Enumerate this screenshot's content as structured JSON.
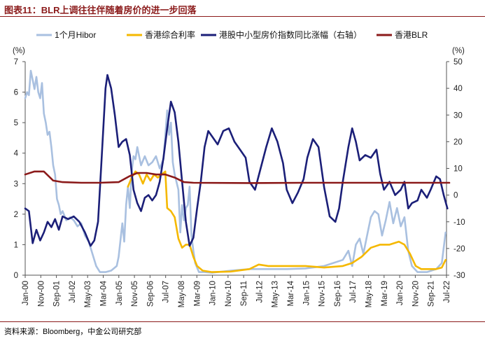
{
  "header": {
    "title": "图表11：BLR上调往往伴随着房价的进一步回落"
  },
  "footer": {
    "source": "资料来源：Bloomberg，中金公司研究部"
  },
  "chart_data": {
    "type": "line",
    "title": "图表11：BLR上调往往伴随着房价的进一步回落",
    "left_axis": {
      "unit": "(%)",
      "range": [
        0,
        7
      ],
      "ticks": [
        0,
        1,
        2,
        3,
        4,
        5,
        6,
        7
      ]
    },
    "right_axis": {
      "unit": "(%)",
      "range": [
        -30,
        50
      ],
      "ticks": [
        -30,
        -20,
        -10,
        0,
        10,
        20,
        30,
        40,
        50
      ]
    },
    "x_tick_labels": [
      "Jan-00",
      "Nov-00",
      "Sep-01",
      "Jul-02",
      "May-03",
      "Mar-04",
      "Jan-05",
      "Nov-05",
      "Sep-06",
      "Jul-07",
      "May-08",
      "Mar-09",
      "Jan-10",
      "Nov-10",
      "Sep-11",
      "Jul-12",
      "May-13",
      "Mar-14",
      "Jan-15",
      "Nov-15",
      "Sep-16",
      "Jul-17",
      "May-18",
      "Mar-19",
      "Jan-20",
      "Nov-20",
      "Sep-21",
      "Jul-22"
    ],
    "legend_position": "top",
    "series": [
      {
        "name": "1个月Hibor",
        "axis": "left",
        "color": "#a9c0e0",
        "points": [
          [
            2000.0,
            5.8
          ],
          [
            2000.1,
            6.0
          ],
          [
            2000.2,
            5.9
          ],
          [
            2000.3,
            6.7
          ],
          [
            2000.4,
            6.4
          ],
          [
            2000.5,
            6.1
          ],
          [
            2000.6,
            6.5
          ],
          [
            2000.7,
            6.0
          ],
          [
            2000.8,
            5.8
          ],
          [
            2000.9,
            6.3
          ],
          [
            2001.0,
            5.3
          ],
          [
            2001.1,
            5.0
          ],
          [
            2001.2,
            4.6
          ],
          [
            2001.3,
            4.7
          ],
          [
            2001.4,
            4.2
          ],
          [
            2001.5,
            3.6
          ],
          [
            2001.6,
            3.3
          ],
          [
            2001.7,
            2.5
          ],
          [
            2001.8,
            2.3
          ],
          [
            2001.9,
            2.0
          ],
          [
            2002.0,
            2.1
          ],
          [
            2002.2,
            1.8
          ],
          [
            2002.4,
            1.9
          ],
          [
            2002.6,
            1.8
          ],
          [
            2002.8,
            1.6
          ],
          [
            2003.0,
            1.7
          ],
          [
            2003.2,
            1.3
          ],
          [
            2003.4,
            1.1
          ],
          [
            2003.6,
            0.7
          ],
          [
            2003.8,
            0.3
          ],
          [
            2004.0,
            0.1
          ],
          [
            2004.3,
            0.1
          ],
          [
            2004.6,
            0.15
          ],
          [
            2004.9,
            0.3
          ],
          [
            2005.0,
            0.6
          ],
          [
            2005.2,
            1.7
          ],
          [
            2005.3,
            1.1
          ],
          [
            2005.4,
            2.3
          ],
          [
            2005.5,
            2.9
          ],
          [
            2005.6,
            2.2
          ],
          [
            2005.7,
            3.4
          ],
          [
            2005.8,
            3.9
          ],
          [
            2005.9,
            3.8
          ],
          [
            2006.0,
            4.2
          ],
          [
            2006.2,
            3.6
          ],
          [
            2006.4,
            3.9
          ],
          [
            2006.6,
            3.6
          ],
          [
            2006.8,
            3.7
          ],
          [
            2007.0,
            3.9
          ],
          [
            2007.2,
            3.5
          ],
          [
            2007.4,
            3.8
          ],
          [
            2007.6,
            5.4
          ],
          [
            2007.7,
            4.6
          ],
          [
            2007.8,
            5.0
          ],
          [
            2007.9,
            3.7
          ],
          [
            2008.0,
            3.3
          ],
          [
            2008.2,
            2.8
          ],
          [
            2008.3,
            1.4
          ],
          [
            2008.4,
            2.3
          ],
          [
            2008.5,
            1.8
          ],
          [
            2008.6,
            2.2
          ],
          [
            2008.7,
            2.3
          ],
          [
            2008.8,
            2.9
          ],
          [
            2008.9,
            1.3
          ],
          [
            2009.0,
            0.8
          ],
          [
            2009.1,
            0.4
          ],
          [
            2009.3,
            0.1
          ],
          [
            2009.6,
            0.1
          ],
          [
            2010.0,
            0.08
          ],
          [
            2011.0,
            0.15
          ],
          [
            2012.0,
            0.2
          ],
          [
            2013.0,
            0.2
          ],
          [
            2014.0,
            0.2
          ],
          [
            2015.0,
            0.22
          ],
          [
            2016.0,
            0.3
          ],
          [
            2017.0,
            0.5
          ],
          [
            2017.3,
            0.8
          ],
          [
            2017.5,
            0.3
          ],
          [
            2017.7,
            1.0
          ],
          [
            2017.9,
            1.2
          ],
          [
            2018.1,
            0.7
          ],
          [
            2018.3,
            1.3
          ],
          [
            2018.5,
            1.9
          ],
          [
            2018.7,
            2.1
          ],
          [
            2018.9,
            2.0
          ],
          [
            2019.1,
            1.3
          ],
          [
            2019.3,
            1.8
          ],
          [
            2019.5,
            2.4
          ],
          [
            2019.7,
            1.7
          ],
          [
            2019.9,
            2.2
          ],
          [
            2020.1,
            1.6
          ],
          [
            2020.3,
            1.9
          ],
          [
            2020.5,
            0.8
          ],
          [
            2020.7,
            0.3
          ],
          [
            2021.0,
            0.1
          ],
          [
            2021.5,
            0.1
          ],
          [
            2022.0,
            0.2
          ],
          [
            2022.3,
            0.4
          ],
          [
            2022.5,
            1.4
          ]
        ]
      },
      {
        "name": "香港综合利率",
        "axis": "left",
        "color": "#f5b800",
        "points": [
          [
            2005.5,
            2.9
          ],
          [
            2005.7,
            3.2
          ],
          [
            2005.9,
            3.4
          ],
          [
            2006.1,
            3.3
          ],
          [
            2006.3,
            3.0
          ],
          [
            2006.5,
            3.3
          ],
          [
            2006.7,
            3.1
          ],
          [
            2006.9,
            3.3
          ],
          [
            2007.1,
            3.2
          ],
          [
            2007.3,
            3.3
          ],
          [
            2007.5,
            3.4
          ],
          [
            2007.6,
            2.2
          ],
          [
            2007.8,
            2.1
          ],
          [
            2008.0,
            1.9
          ],
          [
            2008.2,
            1.2
          ],
          [
            2008.4,
            0.9
          ],
          [
            2008.6,
            1.0
          ],
          [
            2008.8,
            1.0
          ],
          [
            2009.0,
            0.6
          ],
          [
            2009.2,
            0.3
          ],
          [
            2009.5,
            0.15
          ],
          [
            2010.0,
            0.1
          ],
          [
            2011.0,
            0.12
          ],
          [
            2012.0,
            0.2
          ],
          [
            2012.5,
            0.35
          ],
          [
            2013.0,
            0.3
          ],
          [
            2014.0,
            0.3
          ],
          [
            2015.0,
            0.3
          ],
          [
            2016.0,
            0.25
          ],
          [
            2017.0,
            0.3
          ],
          [
            2017.5,
            0.4
          ],
          [
            2018.0,
            0.6
          ],
          [
            2018.5,
            0.9
          ],
          [
            2019.0,
            1.0
          ],
          [
            2019.5,
            1.0
          ],
          [
            2020.0,
            1.1
          ],
          [
            2020.3,
            1.0
          ],
          [
            2020.6,
            0.7
          ],
          [
            2020.9,
            0.3
          ],
          [
            2021.2,
            0.2
          ],
          [
            2021.6,
            0.2
          ],
          [
            2022.0,
            0.2
          ],
          [
            2022.3,
            0.25
          ],
          [
            2022.5,
            0.5
          ]
        ]
      },
      {
        "name": "港股中小型房价指数同比涨幅（右轴）",
        "axis": "right",
        "color": "#1b1f78",
        "points": [
          [
            2000.0,
            -5
          ],
          [
            2000.2,
            -6
          ],
          [
            2000.4,
            -18
          ],
          [
            2000.6,
            -13
          ],
          [
            2000.8,
            -17
          ],
          [
            2001.0,
            -14
          ],
          [
            2001.2,
            -10
          ],
          [
            2001.4,
            -12
          ],
          [
            2001.6,
            -9
          ],
          [
            2001.8,
            -13
          ],
          [
            2002.0,
            -8
          ],
          [
            2002.3,
            -9
          ],
          [
            2002.6,
            -8
          ],
          [
            2002.9,
            -10
          ],
          [
            2003.2,
            -14
          ],
          [
            2003.5,
            -19
          ],
          [
            2003.7,
            -17
          ],
          [
            2003.9,
            -10
          ],
          [
            2004.1,
            15
          ],
          [
            2004.3,
            40
          ],
          [
            2004.4,
            45
          ],
          [
            2004.6,
            40
          ],
          [
            2004.8,
            30
          ],
          [
            2005.0,
            18
          ],
          [
            2005.2,
            20
          ],
          [
            2005.4,
            21
          ],
          [
            2005.6,
            15
          ],
          [
            2005.8,
            2
          ],
          [
            2006.0,
            -3
          ],
          [
            2006.2,
            -6
          ],
          [
            2006.4,
            -1
          ],
          [
            2006.6,
            0
          ],
          [
            2006.8,
            -2
          ],
          [
            2007.0,
            0
          ],
          [
            2007.2,
            5
          ],
          [
            2007.4,
            14
          ],
          [
            2007.6,
            25
          ],
          [
            2007.8,
            35
          ],
          [
            2008.0,
            31
          ],
          [
            2008.2,
            20
          ],
          [
            2008.4,
            5
          ],
          [
            2008.6,
            -10
          ],
          [
            2008.8,
            -19
          ],
          [
            2009.0,
            -16
          ],
          [
            2009.2,
            -5
          ],
          [
            2009.4,
            5
          ],
          [
            2009.6,
            18
          ],
          [
            2009.8,
            24
          ],
          [
            2010.0,
            22
          ],
          [
            2010.3,
            19
          ],
          [
            2010.6,
            24
          ],
          [
            2010.9,
            25
          ],
          [
            2011.2,
            20
          ],
          [
            2011.5,
            17
          ],
          [
            2011.8,
            14
          ],
          [
            2012.0,
            5
          ],
          [
            2012.3,
            2
          ],
          [
            2012.6,
            10
          ],
          [
            2012.9,
            18
          ],
          [
            2013.2,
            25
          ],
          [
            2013.5,
            20
          ],
          [
            2013.8,
            12
          ],
          [
            2014.0,
            2
          ],
          [
            2014.3,
            -3
          ],
          [
            2014.6,
            1
          ],
          [
            2014.9,
            6
          ],
          [
            2015.1,
            14
          ],
          [
            2015.4,
            21
          ],
          [
            2015.7,
            18
          ],
          [
            2016.0,
            3
          ],
          [
            2016.3,
            -8
          ],
          [
            2016.6,
            -10
          ],
          [
            2016.8,
            -5
          ],
          [
            2017.0,
            5
          ],
          [
            2017.3,
            18
          ],
          [
            2017.5,
            25
          ],
          [
            2017.7,
            20
          ],
          [
            2017.9,
            13
          ],
          [
            2018.2,
            15
          ],
          [
            2018.5,
            14
          ],
          [
            2018.8,
            17
          ],
          [
            2019.0,
            8
          ],
          [
            2019.2,
            2
          ],
          [
            2019.5,
            5
          ],
          [
            2019.8,
            0
          ],
          [
            2020.1,
            2
          ],
          [
            2020.3,
            5
          ],
          [
            2020.5,
            -5
          ],
          [
            2020.7,
            -3
          ],
          [
            2021.0,
            -2
          ],
          [
            2021.2,
            2
          ],
          [
            2021.5,
            -1
          ],
          [
            2021.7,
            2
          ],
          [
            2022.0,
            7
          ],
          [
            2022.2,
            6
          ],
          [
            2022.4,
            0
          ],
          [
            2022.6,
            -5
          ]
        ]
      },
      {
        "name": "香港BLR",
        "axis": "left",
        "color": "#8b1a1a",
        "points": [
          [
            2000.0,
            3.3
          ],
          [
            2000.5,
            3.4
          ],
          [
            2001.0,
            3.4
          ],
          [
            2001.5,
            3.1
          ],
          [
            2002.0,
            3.05
          ],
          [
            2003.0,
            3.03
          ],
          [
            2004.0,
            3.03
          ],
          [
            2005.0,
            3.05
          ],
          [
            2005.6,
            3.25
          ],
          [
            2006.0,
            3.35
          ],
          [
            2006.5,
            3.35
          ],
          [
            2007.0,
            3.3
          ],
          [
            2007.5,
            3.3
          ],
          [
            2008.0,
            3.2
          ],
          [
            2008.5,
            3.05
          ],
          [
            2009.0,
            3.03
          ],
          [
            2012.0,
            3.02
          ],
          [
            2015.0,
            3.03
          ],
          [
            2018.0,
            3.03
          ],
          [
            2020.0,
            3.03
          ],
          [
            2022.7,
            3.03
          ]
        ]
      }
    ]
  }
}
